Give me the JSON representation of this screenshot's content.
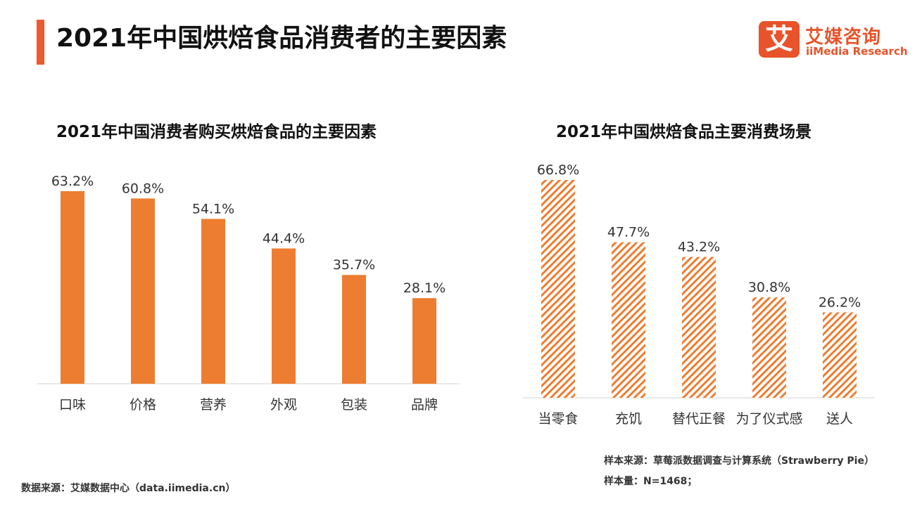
{
  "page": {
    "title": "2021年中国烘焙食品消费者的主要因素",
    "brand_cn": "艾媒咨询",
    "brand_en": "iiMedia Research",
    "brand_mark": "艾"
  },
  "colors": {
    "accent": "#ee5a2f",
    "bar": "#ed7d31"
  },
  "chart_data": [
    {
      "type": "bar",
      "title": "2021年中国消费者购买烘焙食品的主要因素",
      "categories": [
        "口味",
        "价格",
        "营养",
        "外观",
        "包装",
        "品牌"
      ],
      "values": [
        63.2,
        60.8,
        54.1,
        44.4,
        35.7,
        28.1
      ],
      "labels": [
        "63.2%",
        "60.8%",
        "54.1%",
        "44.4%",
        "35.7%",
        "28.1%"
      ],
      "fill": "solid",
      "ylim": [
        0,
        70
      ]
    },
    {
      "type": "bar",
      "title": "2021年中国烘焙食品主要消费场景",
      "categories": [
        "当零食",
        "充饥",
        "替代正餐",
        "为了仪式感",
        "送人"
      ],
      "values": [
        66.8,
        47.7,
        43.2,
        30.8,
        26.2
      ],
      "labels": [
        "66.8%",
        "47.7%",
        "43.2%",
        "30.8%",
        "26.2%"
      ],
      "fill": "hatched",
      "ylim": [
        0,
        70
      ]
    }
  ],
  "notes": {
    "source_left": "数据来源：艾媒数据中心（data.iimedia.cn）",
    "source_right": "样本来源：草莓派数据调查与计算系统（Strawberry Pie）",
    "sample_size": "样本量：N=1468；"
  }
}
